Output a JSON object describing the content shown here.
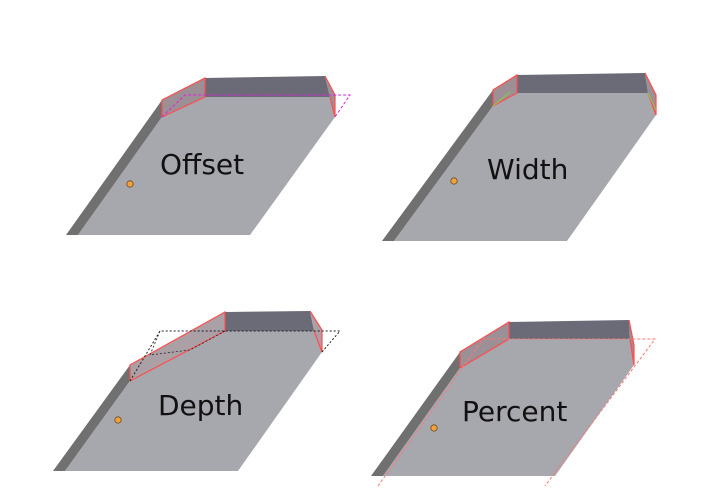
{
  "panels": [
    {
      "id": "offset",
      "label": "Offset"
    },
    {
      "id": "width",
      "label": "Width"
    },
    {
      "id": "depth",
      "label": "Depth"
    },
    {
      "id": "percent",
      "label": "Percent"
    }
  ],
  "colors": {
    "top_face": "#a7a7ae",
    "front_face": "#6b6b78",
    "left_edge": "#707070",
    "bevel_face": "#9c8f96",
    "edge_highlight": "#ff4d4d",
    "offset_guide": "#e020e0",
    "depth_guide": "#222222",
    "width_guide": "#88cc44",
    "percent_guide": "#ff7777",
    "origin_point": "#f2a23c"
  }
}
